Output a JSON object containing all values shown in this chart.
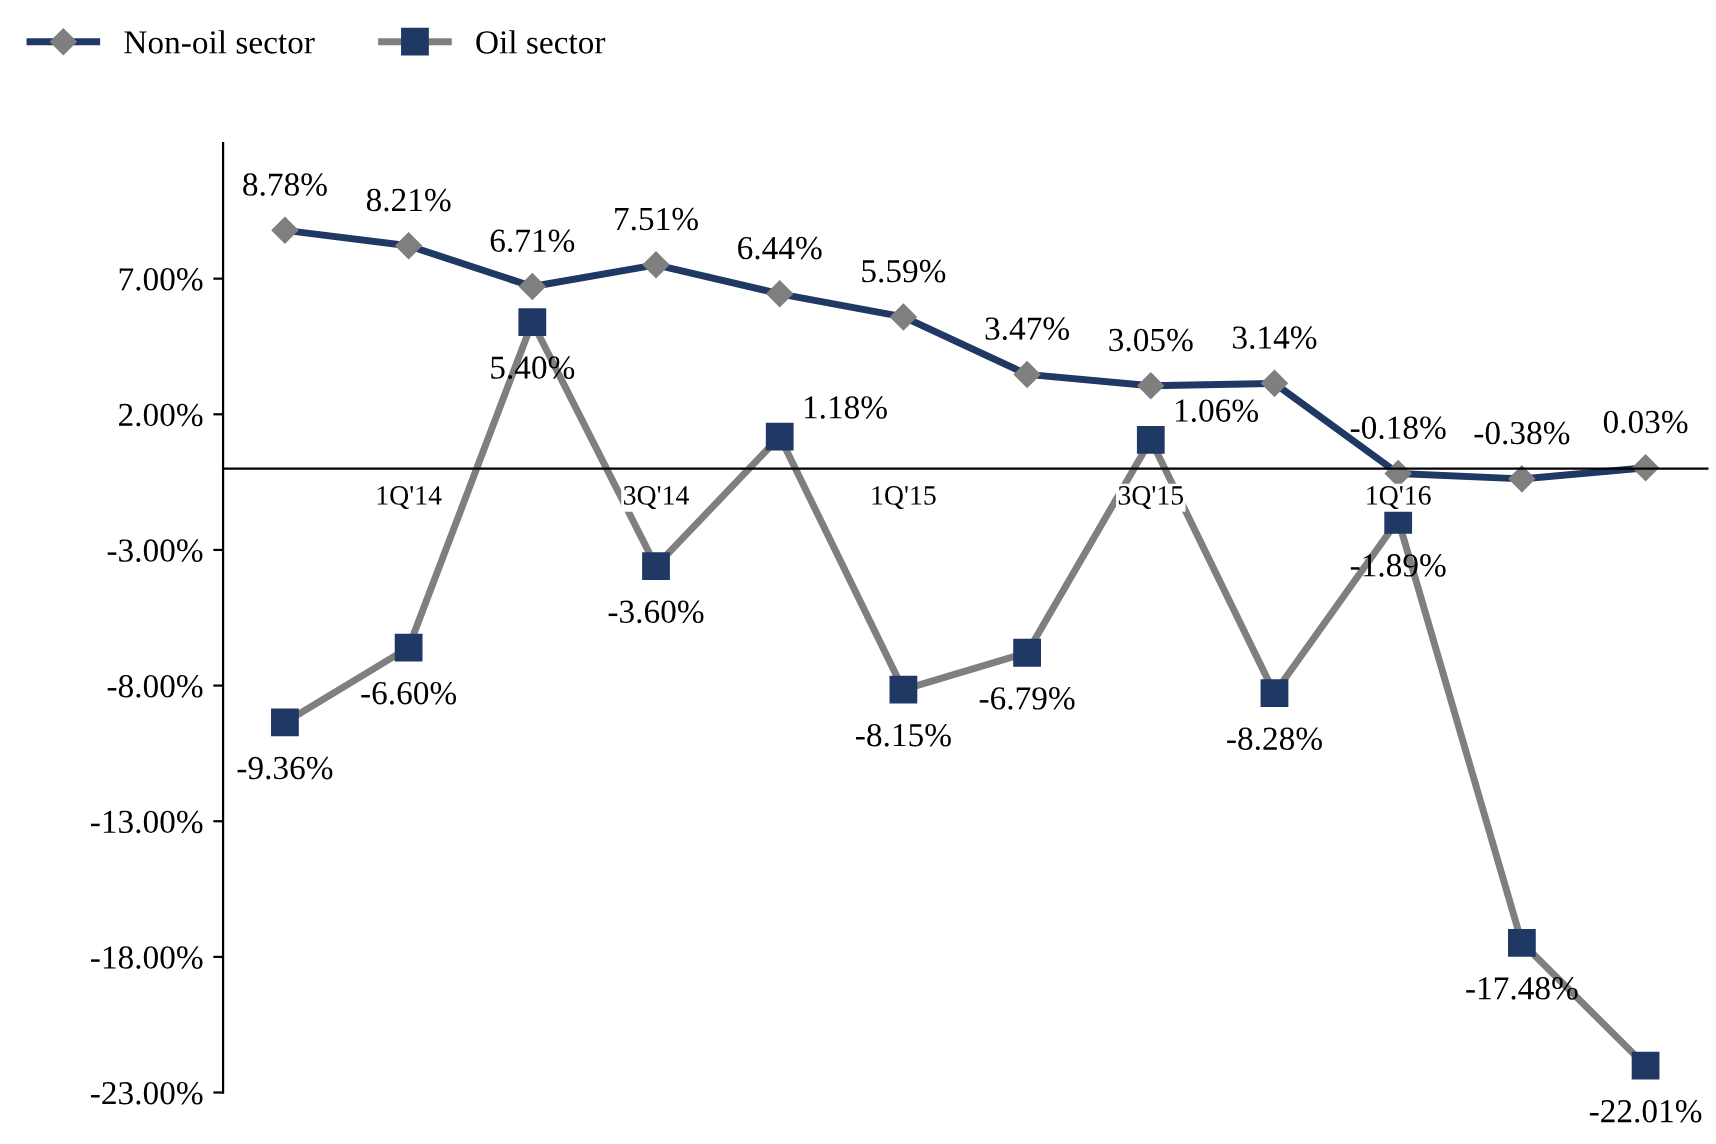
{
  "chart_data": {
    "type": "line",
    "categories": [
      null,
      "1Q'14",
      null,
      "3Q'14",
      null,
      "1Q'15",
      null,
      "3Q'15",
      null,
      "1Q'16",
      null,
      null
    ],
    "series": [
      {
        "name": "Non-oil sector",
        "color": "#203864",
        "marker": "diamond",
        "values": [
          8.78,
          8.21,
          6.71,
          7.51,
          6.44,
          5.59,
          3.47,
          3.05,
          3.14,
          -0.18,
          -0.38,
          0.03
        ],
        "value_labels": [
          "8.78%",
          "8.21%",
          "6.71%",
          "7.51%",
          "6.44%",
          "5.59%",
          "3.47%",
          "3.05%",
          "3.14%",
          "-0.18%",
          "-0.38%",
          "0.03%"
        ]
      },
      {
        "name": "Oil sector",
        "color": "#7f7f7f",
        "marker": "square",
        "values": [
          -9.36,
          -6.6,
          5.4,
          -3.6,
          1.18,
          -8.15,
          -6.79,
          1.06,
          -8.28,
          -1.89,
          -17.48,
          -22.01
        ],
        "value_labels": [
          "-9.36%",
          "-6.60%",
          "5.40%",
          "-3.60%",
          "1.18%",
          "-8.15%",
          "-6.79%",
          "1.06%",
          "-8.28%",
          "-1.89%",
          "-17.48%",
          "-22.01%"
        ]
      }
    ],
    "ylim": [
      -23,
      12
    ],
    "yticks": [
      {
        "value": -23,
        "label": "-23.00%"
      },
      {
        "value": -18,
        "label": "-18.00%"
      },
      {
        "value": -13,
        "label": "-13.00%"
      },
      {
        "value": -8,
        "label": "-8.00%"
      },
      {
        "value": -3,
        "label": "-3.00%"
      },
      {
        "value": 2,
        "label": "2.00%"
      },
      {
        "value": 7,
        "label": "7.00%"
      }
    ],
    "legend": "top left",
    "grid": false
  }
}
